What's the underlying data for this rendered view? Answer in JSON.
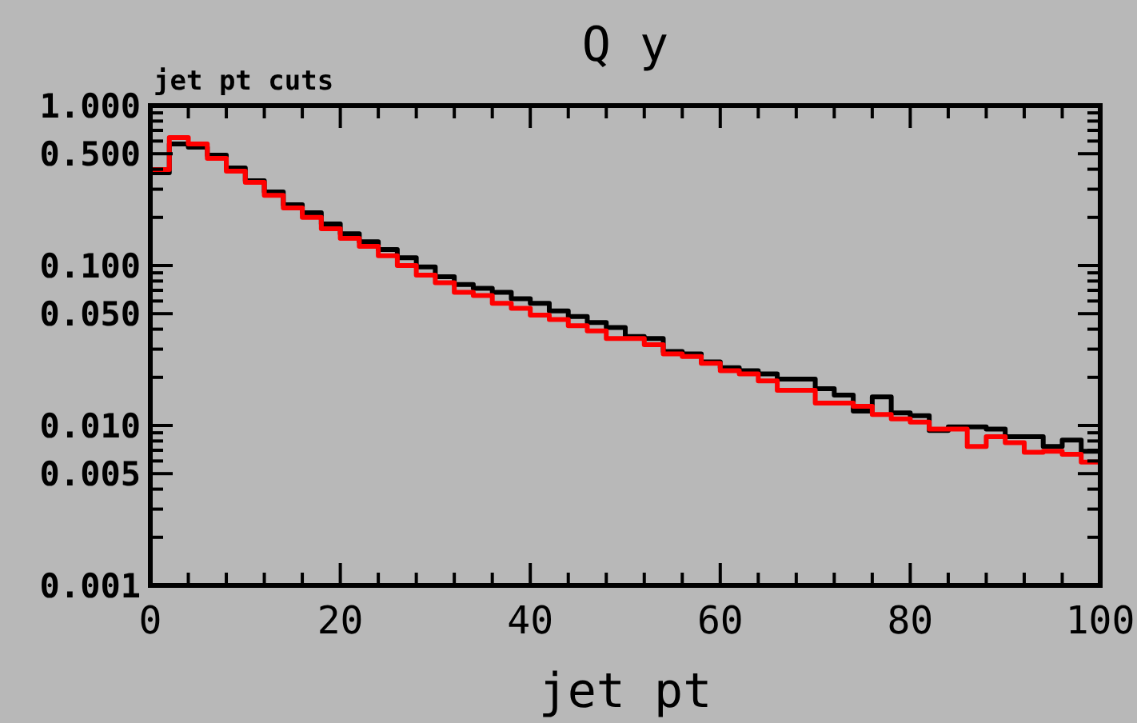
{
  "chart_data": {
    "type": "histogram",
    "title": "Q y",
    "subtitle": "jet pt cuts",
    "xlabel": "jet pt",
    "log": "y",
    "bins": [
      0,
      2,
      4,
      6,
      8,
      10,
      12,
      14,
      16,
      18,
      20,
      22,
      24,
      26,
      28,
      30,
      32,
      34,
      36,
      38,
      40,
      42,
      44,
      46,
      48,
      50,
      52,
      54,
      56,
      58,
      60,
      62,
      64,
      66,
      68,
      70,
      72,
      74,
      76,
      78,
      80,
      82,
      84,
      86,
      88,
      90,
      92,
      94,
      96,
      98,
      100
    ],
    "series": [
      {
        "color": "#000000",
        "values": [
          0.38,
          0.575,
          0.55,
          0.49,
          0.407,
          0.339,
          0.288,
          0.24,
          0.214,
          0.182,
          0.158,
          0.141,
          0.126,
          0.112,
          0.098,
          0.085,
          0.076,
          0.072,
          0.068,
          0.062,
          0.058,
          0.052,
          0.048,
          0.044,
          0.041,
          0.036,
          0.035,
          0.029,
          0.028,
          0.025,
          0.023,
          0.022,
          0.021,
          0.0195,
          0.0195,
          0.017,
          0.0155,
          0.0123,
          0.0151,
          0.012,
          0.0115,
          0.0093,
          0.0098,
          0.0098,
          0.0095,
          0.0085,
          0.0085,
          0.0074,
          0.0081,
          0.0069
        ]
      },
      {
        "color": "#ff0000",
        "values": [
          0.398,
          0.631,
          0.575,
          0.468,
          0.389,
          0.331,
          0.275,
          0.229,
          0.2,
          0.17,
          0.148,
          0.132,
          0.115,
          0.1,
          0.087,
          0.078,
          0.068,
          0.065,
          0.058,
          0.054,
          0.049,
          0.046,
          0.042,
          0.039,
          0.035,
          0.035,
          0.032,
          0.028,
          0.027,
          0.0245,
          0.022,
          0.021,
          0.019,
          0.0166,
          0.0166,
          0.0138,
          0.0138,
          0.0132,
          0.0117,
          0.011,
          0.0105,
          0.0095,
          0.0095,
          0.0074,
          0.0085,
          0.0078,
          0.0068,
          0.0069,
          0.0066,
          0.0059
        ]
      }
    ],
    "xlim": [
      0,
      100
    ],
    "xticks": [
      0,
      {
        "value": 4,
        "label": null
      },
      {
        "value": 8,
        "label": null
      },
      {
        "value": 12,
        "label": null
      },
      {
        "value": 16,
        "label": null
      },
      20,
      {
        "value": 24,
        "label": null
      },
      {
        "value": 28,
        "label": null
      },
      {
        "value": 32,
        "label": null
      },
      {
        "value": 36,
        "label": null
      },
      40,
      {
        "value": 44,
        "label": null
      },
      {
        "value": 48,
        "label": null
      },
      {
        "value": 52,
        "label": null
      },
      {
        "value": 56,
        "label": null
      },
      60,
      {
        "value": 64,
        "label": null
      },
      {
        "value": 68,
        "label": null
      },
      {
        "value": 72,
        "label": null
      },
      {
        "value": 76,
        "label": null
      },
      80,
      {
        "value": 84,
        "label": null
      },
      {
        "value": 88,
        "label": null
      },
      {
        "value": 92,
        "label": null
      },
      {
        "value": 96,
        "label": null
      },
      100
    ],
    "ylim": [
      0.001,
      1
    ],
    "yticks": [
      {
        "value": 0.001,
        "label": "0.001"
      },
      {
        "value": 0.002,
        "label": null
      },
      {
        "value": 0.003,
        "label": null
      },
      {
        "value": 0.004,
        "label": null
      },
      {
        "value": 0.005,
        "label": "0.005"
      },
      {
        "value": 0.006,
        "label": null
      },
      {
        "value": 0.007,
        "label": null
      },
      {
        "value": 0.008,
        "label": null
      },
      {
        "value": 0.009,
        "label": null
      },
      {
        "value": 0.01,
        "label": "0.010"
      },
      {
        "value": 0.02,
        "label": null
      },
      {
        "value": 0.03,
        "label": null
      },
      {
        "value": 0.04,
        "label": null
      },
      {
        "value": 0.05,
        "label": "0.050"
      },
      {
        "value": 0.06,
        "label": null
      },
      {
        "value": 0.07,
        "label": null
      },
      {
        "value": 0.08,
        "label": null
      },
      {
        "value": 0.09,
        "label": null
      },
      {
        "value": 0.1,
        "label": "0.100"
      },
      {
        "value": 0.2,
        "label": null
      },
      {
        "value": 0.3,
        "label": null
      },
      {
        "value": 0.4,
        "label": null
      },
      {
        "value": 0.5,
        "label": "0.500"
      },
      {
        "value": 0.6,
        "label": null
      },
      {
        "value": 0.7,
        "label": null
      },
      {
        "value": 0.8,
        "label": null
      },
      {
        "value": 0.9,
        "label": null
      },
      {
        "value": 1,
        "label": "1.000"
      }
    ]
  }
}
